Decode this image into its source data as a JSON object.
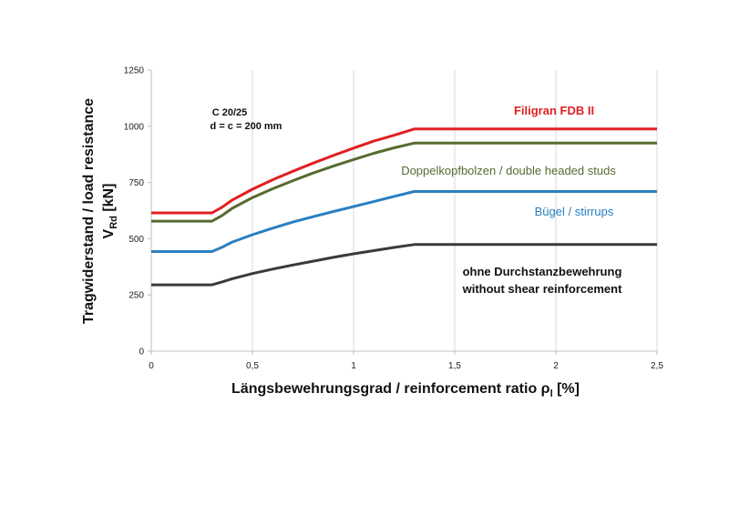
{
  "chart_data": {
    "type": "line",
    "xlabel": "Längsbewehrungsgrad / reinforcement ratio ρ",
    "xlabel_sub": "l",
    "xlabel_unit": " [%]",
    "ylabel_line1": "Tragwiderstand / load resistance",
    "ylabel_line2": "V",
    "ylabel_sub": "Rd",
    "ylabel_unit": " [kN]",
    "xlim": [
      0,
      2.5
    ],
    "ylim": [
      0,
      1250
    ],
    "xticks": [
      0,
      0.5,
      1,
      1.5,
      2,
      2.5
    ],
    "xtick_labels": [
      "0",
      "0,5",
      "1",
      "1,5",
      "2",
      "2,5"
    ],
    "yticks": [
      0,
      250,
      500,
      750,
      1000,
      1250
    ],
    "ytick_labels": [
      "0",
      "250",
      "500",
      "750",
      "1000",
      "1250"
    ],
    "grid": "vertical",
    "annotation_line1": "C 20/25",
    "annotation_line2": "d = c = 200 mm",
    "series": [
      {
        "name": "Filigran FDB II",
        "color": "#e02020",
        "points": [
          [
            0,
            615
          ],
          [
            0.3,
            615
          ],
          [
            0.35,
            640
          ],
          [
            0.4,
            672
          ],
          [
            0.5,
            720
          ],
          [
            0.6,
            762
          ],
          [
            0.7,
            800
          ],
          [
            0.8,
            836
          ],
          [
            0.9,
            870
          ],
          [
            1.0,
            903
          ],
          [
            1.1,
            934
          ],
          [
            1.2,
            960
          ],
          [
            1.3,
            988
          ],
          [
            2.5,
            988
          ]
        ]
      },
      {
        "name": "Doppelkopfbolzen / double headed studs",
        "color": "#566b2f",
        "points": [
          [
            0,
            578
          ],
          [
            0.3,
            578
          ],
          [
            0.35,
            603
          ],
          [
            0.4,
            635
          ],
          [
            0.5,
            683
          ],
          [
            0.6,
            722
          ],
          [
            0.7,
            758
          ],
          [
            0.8,
            792
          ],
          [
            0.9,
            823
          ],
          [
            1.0,
            852
          ],
          [
            1.1,
            880
          ],
          [
            1.2,
            904
          ],
          [
            1.3,
            925
          ],
          [
            2.5,
            925
          ]
        ]
      },
      {
        "name": "Bügel / stirrups",
        "color": "#2a7fc0",
        "points": [
          [
            0,
            443
          ],
          [
            0.3,
            443
          ],
          [
            0.35,
            462
          ],
          [
            0.4,
            485
          ],
          [
            0.5,
            518
          ],
          [
            0.6,
            547
          ],
          [
            0.7,
            574
          ],
          [
            0.8,
            598
          ],
          [
            0.9,
            621
          ],
          [
            1.0,
            643
          ],
          [
            1.1,
            665
          ],
          [
            1.2,
            688
          ],
          [
            1.3,
            710
          ],
          [
            2.5,
            710
          ]
        ]
      },
      {
        "name": "ohne Durchstanzbewehrung / without shear reinforcement",
        "label_line1": "ohne Durchstanzbewehrung",
        "label_line2": "without shear reinforcement",
        "color": "#3a3a3a",
        "points": [
          [
            0,
            295
          ],
          [
            0.3,
            295
          ],
          [
            0.35,
            308
          ],
          [
            0.4,
            322
          ],
          [
            0.5,
            345
          ],
          [
            0.6,
            365
          ],
          [
            0.7,
            383
          ],
          [
            0.8,
            400
          ],
          [
            0.9,
            417
          ],
          [
            1.0,
            433
          ],
          [
            1.1,
            447
          ],
          [
            1.2,
            461
          ],
          [
            1.3,
            474
          ],
          [
            2.5,
            474
          ]
        ]
      }
    ]
  }
}
